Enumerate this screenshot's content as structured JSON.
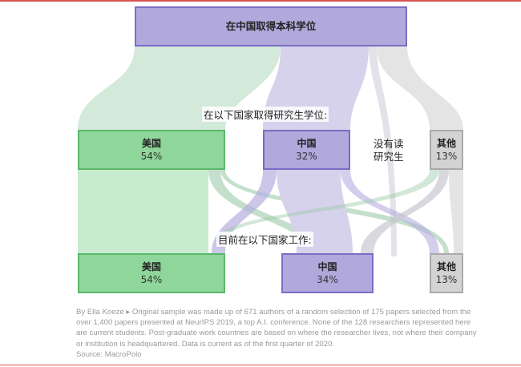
{
  "top_box": {
    "label": "在中国取得本科学位"
  },
  "grad_heading": "在以下国家取得研究生学位:",
  "grad_nodes": [
    {
      "name": "美国",
      "pct": "54%",
      "color": "#8fd69a"
    },
    {
      "name": "中国",
      "pct": "32%",
      "color": "#b1a8dc"
    },
    {
      "name": "其他",
      "pct": "13%",
      "color": "#d3d3d3"
    }
  ],
  "no_grad_label": [
    "没有读",
    "研究生"
  ],
  "work_heading": "目前在以下国家工作:",
  "work_nodes": [
    {
      "name": "美国",
      "pct": "54%",
      "color": "#8fd69a"
    },
    {
      "name": "中国",
      "pct": "34%",
      "color": "#b1a8dc"
    },
    {
      "name": "其他",
      "pct": "13%",
      "color": "#d3d3d3"
    }
  ],
  "footer": {
    "byline": "By Ella Koeze",
    "note": "Original sample was made up of 671 authors of a random selection of 175 papers selected from the over 1,400 papers presented at NeurIPS 2019, a top A.I. conference. None of the 128 researchers represented here are current students. Post-graduate work countries are based on where the researcher lives, not where their company or institution is headquartered. Data is current as of the first quarter of 2020.",
    "source": "Source: MacroPolo"
  }
}
